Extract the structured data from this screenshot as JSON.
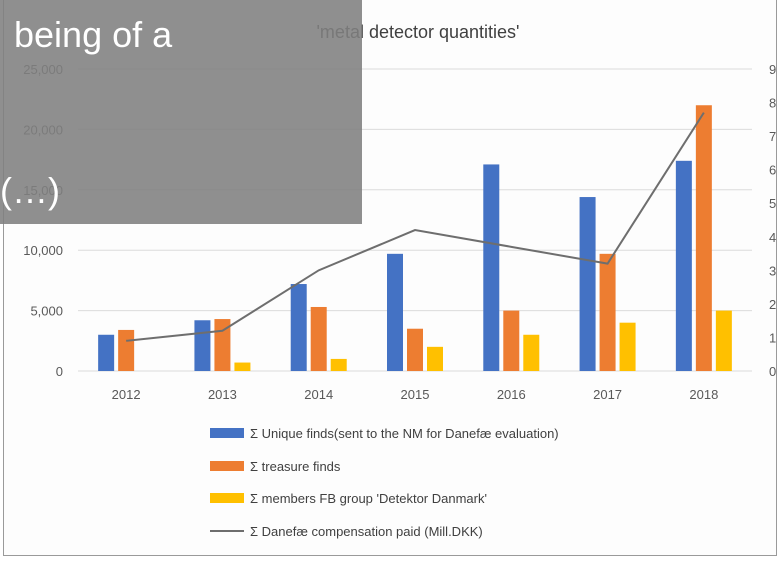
{
  "overlay": {
    "line1": "being of a",
    "line2": "(…)"
  },
  "chart_data": {
    "type": "bar",
    "title": "'metal detector quantities'",
    "categories": [
      "2012",
      "2013",
      "2014",
      "2015",
      "2016",
      "2017",
      "2018"
    ],
    "ylim": [
      0,
      25000
    ],
    "y2lim": [
      0,
      9
    ],
    "y_ticks": [
      "0",
      "5,000",
      "10,000",
      "15,000",
      "20,000",
      "25,000"
    ],
    "y2_ticks": [
      "0",
      "1",
      "2",
      "3",
      "4",
      "5",
      "6",
      "7",
      "8",
      "9"
    ],
    "series": [
      {
        "name": "Σ Unique finds(sent to the NM for Danefæ evaluation)",
        "type": "bar",
        "color": "#4472c4",
        "values": [
          3000,
          4200,
          7200,
          9700,
          17100,
          14400,
          17400
        ]
      },
      {
        "name": "Σ treasure finds",
        "type": "bar",
        "color": "#ed7d31",
        "values": [
          3400,
          4300,
          5300,
          3500,
          5000,
          9700,
          22000
        ]
      },
      {
        "name": "Σ members FB group 'Detektor Danmark'",
        "type": "bar",
        "color": "#ffc000",
        "values": [
          0,
          700,
          1000,
          2000,
          3000,
          4000,
          5000
        ]
      },
      {
        "name": "Σ Danefæ compensation paid (Mill.DKK)",
        "type": "line",
        "axis": "right",
        "color": "#6e6e6e",
        "values": [
          0.9,
          1.2,
          3.0,
          4.2,
          3.7,
          3.2,
          7.7
        ]
      }
    ],
    "grid": true,
    "legend_position": "bottom"
  }
}
